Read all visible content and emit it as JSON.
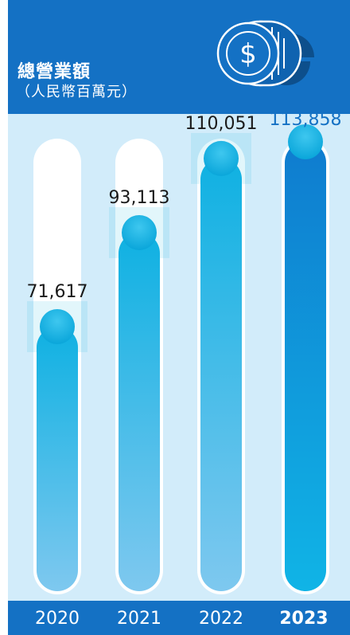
{
  "header": {
    "title": "總營業額",
    "subtitle": "（人民幣百萬元）"
  },
  "icons": {
    "coin": "dollar-coin-icon",
    "pie": "pie-chart-icon"
  },
  "colors": {
    "brand": "#1471c4",
    "plot_bg": "#d2ecfa",
    "bar_top": "#0fb1e2",
    "bar_bottom": "#7ec8ef",
    "bar_last": "#0f7ccf"
  },
  "chart_data": {
    "type": "bar",
    "categories": [
      "2020",
      "2021",
      "2022",
      "2023"
    ],
    "values": [
      71617,
      93113,
      110051,
      113858
    ],
    "value_labels": [
      "71,617",
      "93,113",
      "110,051",
      "113,858"
    ],
    "highlight_category": "2023",
    "title": "總營業額",
    "subtitle": "（人民幣百萬元）",
    "ylim": [
      0,
      118000
    ],
    "grid": false
  }
}
